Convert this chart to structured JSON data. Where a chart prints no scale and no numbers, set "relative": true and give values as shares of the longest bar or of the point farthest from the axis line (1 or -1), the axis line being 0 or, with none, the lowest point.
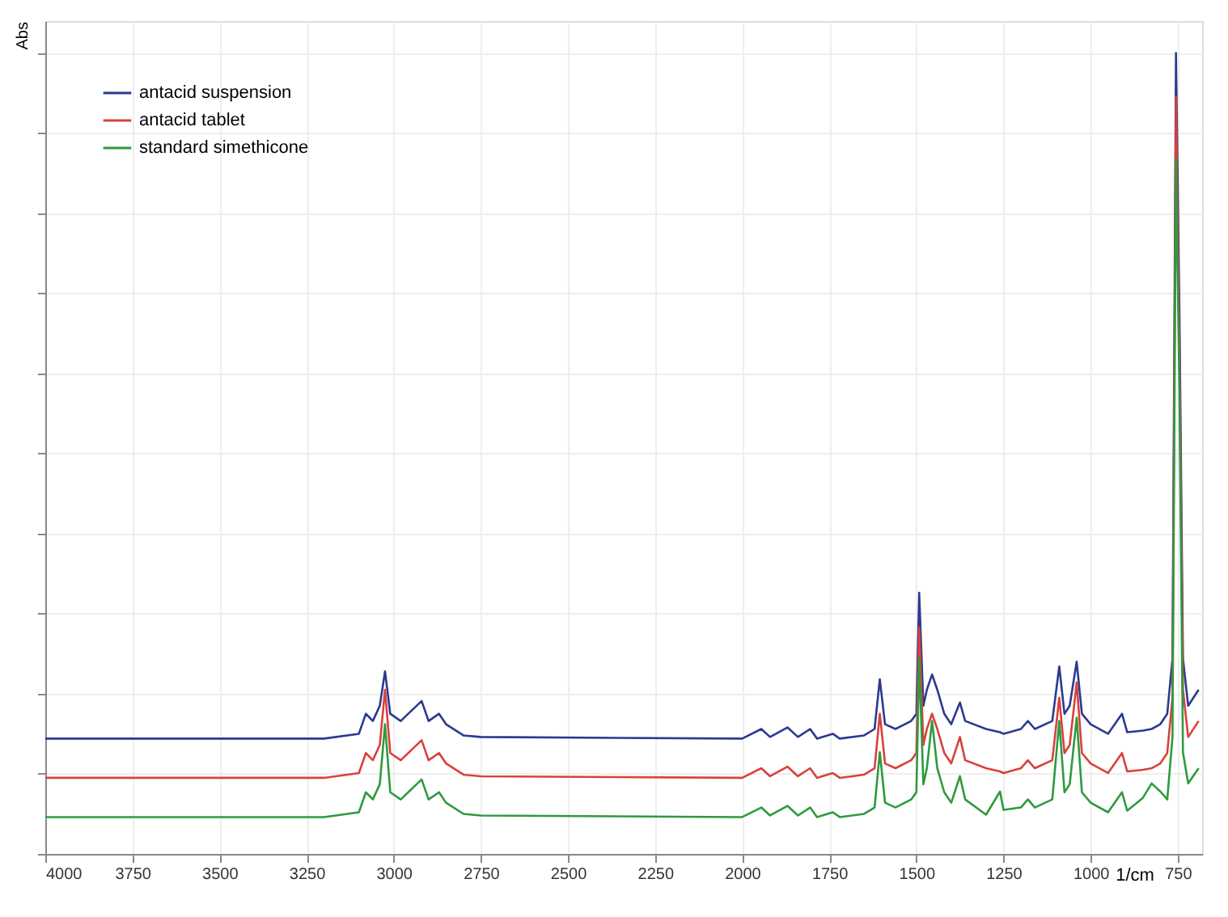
{
  "chart_data": {
    "type": "line",
    "ylabel": "Abs",
    "xlabel": "1/cm",
    "relative": true,
    "x": [
      4000,
      3200,
      3100,
      3080,
      3060,
      3040,
      3025,
      3010,
      2980,
      2920,
      2900,
      2870,
      2850,
      2800,
      2750,
      2000,
      1945,
      1920,
      1870,
      1840,
      1805,
      1785,
      1740,
      1720,
      1650,
      1620,
      1605,
      1590,
      1560,
      1515,
      1500,
      1492,
      1480,
      1470,
      1455,
      1440,
      1420,
      1400,
      1375,
      1360,
      1300,
      1260,
      1250,
      1200,
      1180,
      1160,
      1110,
      1090,
      1075,
      1060,
      1040,
      1025,
      1000,
      950,
      910,
      895,
      850,
      825,
      800,
      780,
      765,
      755,
      745,
      735,
      720,
      690
    ],
    "series": [
      {
        "name": "antacid suspension",
        "color": "#2b3a8f",
        "values": [
          0.144,
          0.144,
          0.15,
          0.175,
          0.166,
          0.185,
          0.228,
          0.175,
          0.166,
          0.191,
          0.166,
          0.175,
          0.162,
          0.148,
          0.146,
          0.144,
          0.156,
          0.146,
          0.158,
          0.146,
          0.156,
          0.144,
          0.15,
          0.144,
          0.148,
          0.156,
          0.218,
          0.162,
          0.156,
          0.166,
          0.175,
          0.326,
          0.185,
          0.205,
          0.224,
          0.205,
          0.175,
          0.162,
          0.189,
          0.166,
          0.156,
          0.152,
          0.15,
          0.156,
          0.166,
          0.156,
          0.166,
          0.234,
          0.175,
          0.185,
          0.24,
          0.175,
          0.162,
          0.15,
          0.175,
          0.152,
          0.154,
          0.156,
          0.162,
          0.175,
          0.244,
          1,
          0.673,
          0.244,
          0.185,
          0.205
        ]
      },
      {
        "name": "antacid tablet",
        "color": "#d9413a",
        "values": [
          0.095,
          0.095,
          0.101,
          0.126,
          0.117,
          0.136,
          0.205,
          0.126,
          0.117,
          0.142,
          0.117,
          0.126,
          0.113,
          0.099,
          0.097,
          0.095,
          0.107,
          0.097,
          0.109,
          0.097,
          0.107,
          0.095,
          0.101,
          0.095,
          0.099,
          0.107,
          0.175,
          0.113,
          0.107,
          0.117,
          0.126,
          0.283,
          0.136,
          0.156,
          0.175,
          0.156,
          0.126,
          0.113,
          0.146,
          0.117,
          0.107,
          0.103,
          0.101,
          0.107,
          0.117,
          0.107,
          0.117,
          0.195,
          0.126,
          0.136,
          0.214,
          0.126,
          0.113,
          0.101,
          0.126,
          0.103,
          0.105,
          0.107,
          0.113,
          0.126,
          0.195,
          0.945,
          0.614,
          0.205,
          0.146,
          0.166
        ]
      },
      {
        "name": "standard simethicone",
        "color": "#2e9a3e",
        "values": [
          0.046,
          0.046,
          0.052,
          0.077,
          0.068,
          0.087,
          0.162,
          0.077,
          0.068,
          0.093,
          0.068,
          0.077,
          0.064,
          0.05,
          0.048,
          0.046,
          0.058,
          0.048,
          0.06,
          0.048,
          0.058,
          0.046,
          0.052,
          0.046,
          0.05,
          0.058,
          0.127,
          0.064,
          0.058,
          0.068,
          0.077,
          0.244,
          0.087,
          0.107,
          0.166,
          0.107,
          0.077,
          0.064,
          0.097,
          0.068,
          0.049,
          0.078,
          0.055,
          0.058,
          0.068,
          0.058,
          0.068,
          0.166,
          0.077,
          0.087,
          0.17,
          0.077,
          0.064,
          0.052,
          0.077,
          0.054,
          0.07,
          0.088,
          0.078,
          0.068,
          0.146,
          0.867,
          0.575,
          0.127,
          0.088,
          0.107
        ]
      }
    ],
    "xlim": [
      4000,
      680
    ],
    "xticks": [
      4000,
      3750,
      3500,
      3250,
      3000,
      2750,
      2500,
      2250,
      2000,
      1750,
      1500,
      1250,
      1000,
      750
    ],
    "grid": true,
    "legend": "top left",
    "tick_labels": "x",
    "line_style": "solid",
    "marker": "none"
  }
}
